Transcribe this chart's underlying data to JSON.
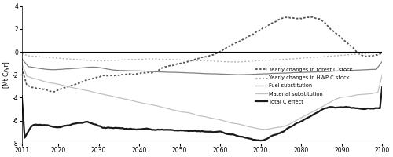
{
  "title": "",
  "ylabel": "[Mt C/yr]",
  "xlim": [
    2011,
    2100
  ],
  "ylim": [
    -8,
    4
  ],
  "yticks": [
    -8,
    -6,
    -4,
    -2,
    0,
    2,
    4
  ],
  "xticks": [
    2011,
    2020,
    2030,
    2040,
    2050,
    2060,
    2070,
    2080,
    2090,
    2100
  ],
  "background_color": "#ffffff",
  "legend_entries": [
    "Yearly changes in forest C stock",
    "Yearly changes in HWP C stock",
    "Fuel substitution",
    "Material substitution",
    "Total C effect"
  ],
  "colors": {
    "forest": "#555555",
    "hwp": "#aaaaaa",
    "fuel": "#808080",
    "material": "#c0c0c0",
    "total": "#1a1a1a"
  }
}
